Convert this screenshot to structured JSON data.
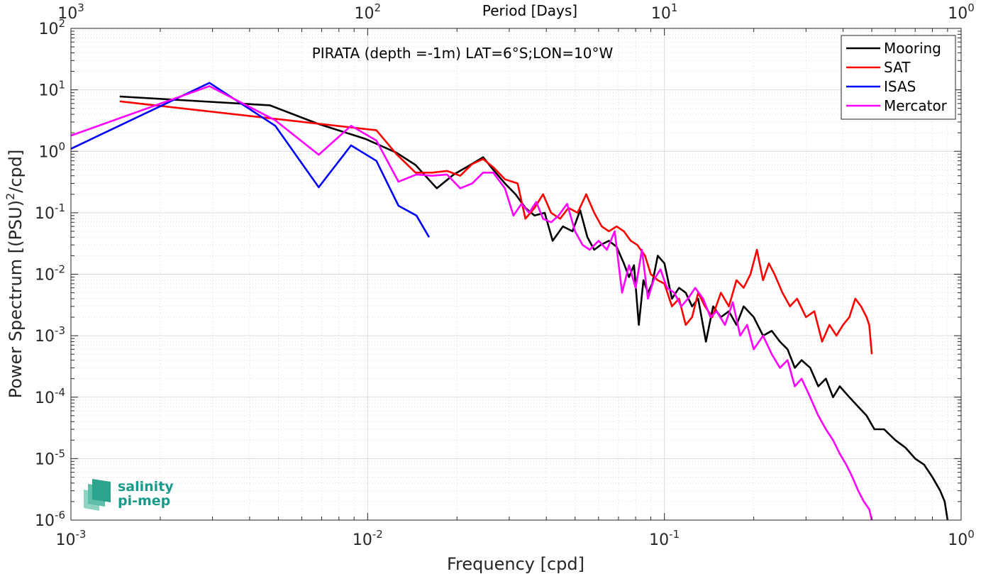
{
  "chart_data": {
    "type": "line",
    "title": "",
    "annotation": "PIRATA (depth =-1m) LAT=6°S;LON=10°W",
    "xlabel": "Frequency [cpd]",
    "ylabel": "Power Spectrum [(PSU)²/cpd]",
    "ylabel_parts": {
      "pre": "Power Spectrum [(PSU)",
      "sup": "2",
      "post": "/cpd]"
    },
    "x2label": "Period [Days]",
    "xscale": "log",
    "yscale": "log",
    "xlim": [
      0.001,
      1
    ],
    "ylim": [
      1e-06,
      100
    ],
    "grid": true,
    "legend_position": "top-right",
    "x_ticks": [
      {
        "value": 0.001,
        "base": "10",
        "exp": "-3"
      },
      {
        "value": 0.01,
        "base": "10",
        "exp": "-2"
      },
      {
        "value": 0.1,
        "base": "10",
        "exp": "-1"
      },
      {
        "value": 1,
        "base": "10",
        "exp": "0"
      }
    ],
    "y_ticks": [
      {
        "value": 1e-06,
        "base": "10",
        "exp": "-6"
      },
      {
        "value": 1e-05,
        "base": "10",
        "exp": "-5"
      },
      {
        "value": 0.0001,
        "base": "10",
        "exp": "-4"
      },
      {
        "value": 0.001,
        "base": "10",
        "exp": "-3"
      },
      {
        "value": 0.01,
        "base": "10",
        "exp": "-2"
      },
      {
        "value": 0.1,
        "base": "10",
        "exp": "-1"
      },
      {
        "value": 1,
        "base": "10",
        "exp": "0"
      },
      {
        "value": 10,
        "base": "10",
        "exp": "1"
      },
      {
        "value": 100,
        "base": "10",
        "exp": "2"
      }
    ],
    "top_ticks": [
      {
        "value": 0.001,
        "base": "10",
        "exp": "3"
      },
      {
        "value": 0.01,
        "base": "10",
        "exp": "2"
      },
      {
        "value": 0.1,
        "base": "10",
        "exp": "1"
      },
      {
        "value": 1,
        "base": "10",
        "exp": "0"
      }
    ],
    "series": [
      {
        "name": "Mooring",
        "color": "#000000",
        "points": [
          [
            0.00146,
            7.8
          ],
          [
            0.00468,
            5.6
          ],
          [
            0.0068,
            2.8
          ],
          [
            0.0098,
            1.6
          ],
          [
            0.0125,
            0.95
          ],
          [
            0.0145,
            0.6
          ],
          [
            0.0171,
            0.25
          ],
          [
            0.0195,
            0.42
          ],
          [
            0.0215,
            0.55
          ],
          [
            0.0245,
            0.8
          ],
          [
            0.0265,
            0.5
          ],
          [
            0.029,
            0.3
          ],
          [
            0.0315,
            0.2
          ],
          [
            0.034,
            0.12
          ],
          [
            0.0365,
            0.09
          ],
          [
            0.0395,
            0.1
          ],
          [
            0.042,
            0.035
          ],
          [
            0.0455,
            0.06
          ],
          [
            0.049,
            0.05
          ],
          [
            0.052,
            0.11
          ],
          [
            0.055,
            0.04
          ],
          [
            0.058,
            0.025
          ],
          [
            0.061,
            0.03
          ],
          [
            0.065,
            0.035
          ],
          [
            0.069,
            0.028
          ],
          [
            0.073,
            0.015
          ],
          [
            0.076,
            0.009
          ],
          [
            0.079,
            0.014
          ],
          [
            0.082,
            0.0015
          ],
          [
            0.085,
            0.008
          ],
          [
            0.088,
            0.005
          ],
          [
            0.091,
            0.007
          ],
          [
            0.095,
            0.02
          ],
          [
            0.1,
            0.015
          ],
          [
            0.106,
            0.004
          ],
          [
            0.112,
            0.006
          ],
          [
            0.118,
            0.005
          ],
          [
            0.124,
            0.003
          ],
          [
            0.13,
            0.004
          ],
          [
            0.138,
            0.0008
          ],
          [
            0.146,
            0.003
          ],
          [
            0.155,
            0.002
          ],
          [
            0.165,
            0.0025
          ],
          [
            0.175,
            0.0015
          ],
          [
            0.185,
            0.003
          ],
          [
            0.2,
            0.002
          ],
          [
            0.215,
            0.001
          ],
          [
            0.23,
            0.0012
          ],
          [
            0.245,
            0.0008
          ],
          [
            0.26,
            0.0006
          ],
          [
            0.275,
            0.0003
          ],
          [
            0.29,
            0.0004
          ],
          [
            0.31,
            0.0003
          ],
          [
            0.33,
            0.00015
          ],
          [
            0.35,
            0.0002
          ],
          [
            0.37,
            0.0001
          ],
          [
            0.39,
            0.00015
          ],
          [
            0.42,
            0.0001
          ],
          [
            0.45,
            7e-05
          ],
          [
            0.48,
            5e-05
          ],
          [
            0.51,
            3e-05
          ],
          [
            0.55,
            3e-05
          ],
          [
            0.6,
            2e-05
          ],
          [
            0.65,
            1.5e-05
          ],
          [
            0.7,
            1e-05
          ],
          [
            0.75,
            8e-06
          ],
          [
            0.8,
            5e-06
          ],
          [
            0.85,
            3e-06
          ],
          [
            0.88,
            2e-06
          ],
          [
            0.9,
            1e-06
          ]
        ]
      },
      {
        "name": "SAT",
        "color": "#ff0000",
        "points": [
          [
            0.00146,
            6.5
          ],
          [
            0.0107,
            2.2
          ],
          [
            0.0125,
            0.9
          ],
          [
            0.0145,
            0.45
          ],
          [
            0.0165,
            0.45
          ],
          [
            0.0185,
            0.48
          ],
          [
            0.0205,
            0.4
          ],
          [
            0.0225,
            0.62
          ],
          [
            0.0245,
            0.75
          ],
          [
            0.0265,
            0.55
          ],
          [
            0.029,
            0.35
          ],
          [
            0.032,
            0.3
          ],
          [
            0.034,
            0.08
          ],
          [
            0.0365,
            0.12
          ],
          [
            0.039,
            0.2
          ],
          [
            0.0415,
            0.1
          ],
          [
            0.0445,
            0.08
          ],
          [
            0.0475,
            0.12
          ],
          [
            0.051,
            0.1
          ],
          [
            0.0545,
            0.2
          ],
          [
            0.058,
            0.1
          ],
          [
            0.0615,
            0.06
          ],
          [
            0.065,
            0.05
          ],
          [
            0.069,
            0.06
          ],
          [
            0.073,
            0.05
          ],
          [
            0.077,
            0.035
          ],
          [
            0.081,
            0.03
          ],
          [
            0.086,
            0.02
          ],
          [
            0.09,
            0.01
          ],
          [
            0.095,
            0.008
          ],
          [
            0.1,
            0.007
          ],
          [
            0.106,
            0.003
          ],
          [
            0.112,
            0.004
          ],
          [
            0.118,
            0.0015
          ],
          [
            0.124,
            0.002
          ],
          [
            0.13,
            0.005
          ],
          [
            0.137,
            0.003
          ],
          [
            0.145,
            0.002
          ],
          [
            0.155,
            0.005
          ],
          [
            0.165,
            0.003
          ],
          [
            0.175,
            0.008
          ],
          [
            0.185,
            0.006
          ],
          [
            0.195,
            0.01
          ],
          [
            0.205,
            0.025
          ],
          [
            0.215,
            0.008
          ],
          [
            0.225,
            0.015
          ],
          [
            0.235,
            0.01
          ],
          [
            0.25,
            0.005
          ],
          [
            0.265,
            0.003
          ],
          [
            0.28,
            0.004
          ],
          [
            0.3,
            0.002
          ],
          [
            0.32,
            0.0025
          ],
          [
            0.34,
            0.0008
          ],
          [
            0.36,
            0.0015
          ],
          [
            0.38,
            0.001
          ],
          [
            0.4,
            0.0015
          ],
          [
            0.42,
            0.002
          ],
          [
            0.44,
            0.004
          ],
          [
            0.46,
            0.003
          ],
          [
            0.48,
            0.002
          ],
          [
            0.49,
            0.0015
          ],
          [
            0.5,
            0.0005
          ]
        ]
      },
      {
        "name": "ISAS",
        "color": "#0000ff",
        "points": [
          [
            0.001,
            1.1
          ],
          [
            0.00293,
            13.0
          ],
          [
            0.00488,
            2.6
          ],
          [
            0.00684,
            0.26
          ],
          [
            0.00879,
            1.25
          ],
          [
            0.0107,
            0.7
          ],
          [
            0.0127,
            0.13
          ],
          [
            0.0146,
            0.09
          ],
          [
            0.0161,
            0.04
          ]
        ]
      },
      {
        "name": "Mercator",
        "color": "#ff00ff",
        "points": [
          [
            0.001,
            1.8
          ],
          [
            0.00293,
            11.5
          ],
          [
            0.00488,
            3.2
          ],
          [
            0.00684,
            0.88
          ],
          [
            0.00879,
            2.6
          ],
          [
            0.0107,
            1.5
          ],
          [
            0.0127,
            0.32
          ],
          [
            0.0146,
            0.42
          ],
          [
            0.0165,
            0.4
          ],
          [
            0.0185,
            0.42
          ],
          [
            0.0205,
            0.25
          ],
          [
            0.0225,
            0.3
          ],
          [
            0.0245,
            0.45
          ],
          [
            0.0265,
            0.45
          ],
          [
            0.029,
            0.25
          ],
          [
            0.031,
            0.09
          ],
          [
            0.033,
            0.14
          ],
          [
            0.035,
            0.1
          ],
          [
            0.037,
            0.15
          ],
          [
            0.039,
            0.08
          ],
          [
            0.0415,
            0.07
          ],
          [
            0.044,
            0.09
          ],
          [
            0.047,
            0.14
          ],
          [
            0.05,
            0.05
          ],
          [
            0.053,
            0.03
          ],
          [
            0.056,
            0.025
          ],
          [
            0.06,
            0.035
          ],
          [
            0.064,
            0.025
          ],
          [
            0.068,
            0.05
          ],
          [
            0.072,
            0.005
          ],
          [
            0.076,
            0.014
          ],
          [
            0.08,
            0.006
          ],
          [
            0.084,
            0.025
          ],
          [
            0.088,
            0.004
          ],
          [
            0.092,
            0.008
          ],
          [
            0.097,
            0.012
          ],
          [
            0.102,
            0.006
          ],
          [
            0.108,
            0.005
          ],
          [
            0.114,
            0.003
          ],
          [
            0.12,
            0.004
          ],
          [
            0.127,
            0.006
          ],
          [
            0.135,
            0.004
          ],
          [
            0.143,
            0.002
          ],
          [
            0.15,
            0.0025
          ],
          [
            0.16,
            0.0015
          ],
          [
            0.17,
            0.0035
          ],
          [
            0.18,
            0.001
          ],
          [
            0.19,
            0.0015
          ],
          [
            0.2,
            0.0006
          ],
          [
            0.215,
            0.001
          ],
          [
            0.23,
            0.0005
          ],
          [
            0.245,
            0.0003
          ],
          [
            0.26,
            0.0004
          ],
          [
            0.275,
            0.00015
          ],
          [
            0.29,
            0.0002
          ],
          [
            0.31,
            0.0001
          ],
          [
            0.33,
            5e-05
          ],
          [
            0.35,
            3e-05
          ],
          [
            0.37,
            2e-05
          ],
          [
            0.39,
            1.2e-05
          ],
          [
            0.41,
            8e-06
          ],
          [
            0.43,
            5e-06
          ],
          [
            0.45,
            3e-06
          ],
          [
            0.47,
            2e-06
          ],
          [
            0.49,
            1.5e-06
          ],
          [
            0.5,
            1e-06
          ]
        ]
      }
    ]
  },
  "logo": {
    "line1": "salinity",
    "line2": "pi-mep"
  }
}
